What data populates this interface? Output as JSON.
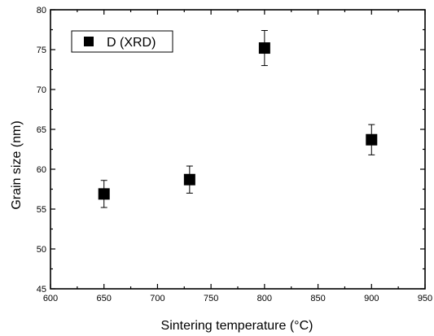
{
  "chart_data": {
    "type": "scatter",
    "title": "",
    "xlabel": "Sintering temperature (°C)",
    "ylabel": "Grain size (nm)",
    "xlim": [
      600,
      950
    ],
    "ylim": [
      45,
      80
    ],
    "x_ticks": [
      600,
      650,
      700,
      750,
      800,
      850,
      900,
      950
    ],
    "y_ticks": [
      45,
      50,
      55,
      60,
      65,
      70,
      75,
      80
    ],
    "grid": false,
    "legend_position": "top-left",
    "marker": "square",
    "series": [
      {
        "name": "D (XRD)",
        "color": "#000000",
        "x": [
          650,
          730,
          800,
          900
        ],
        "y": [
          56.9,
          58.7,
          75.2,
          63.7
        ],
        "error": [
          1.7,
          1.7,
          2.2,
          1.9
        ]
      }
    ]
  }
}
